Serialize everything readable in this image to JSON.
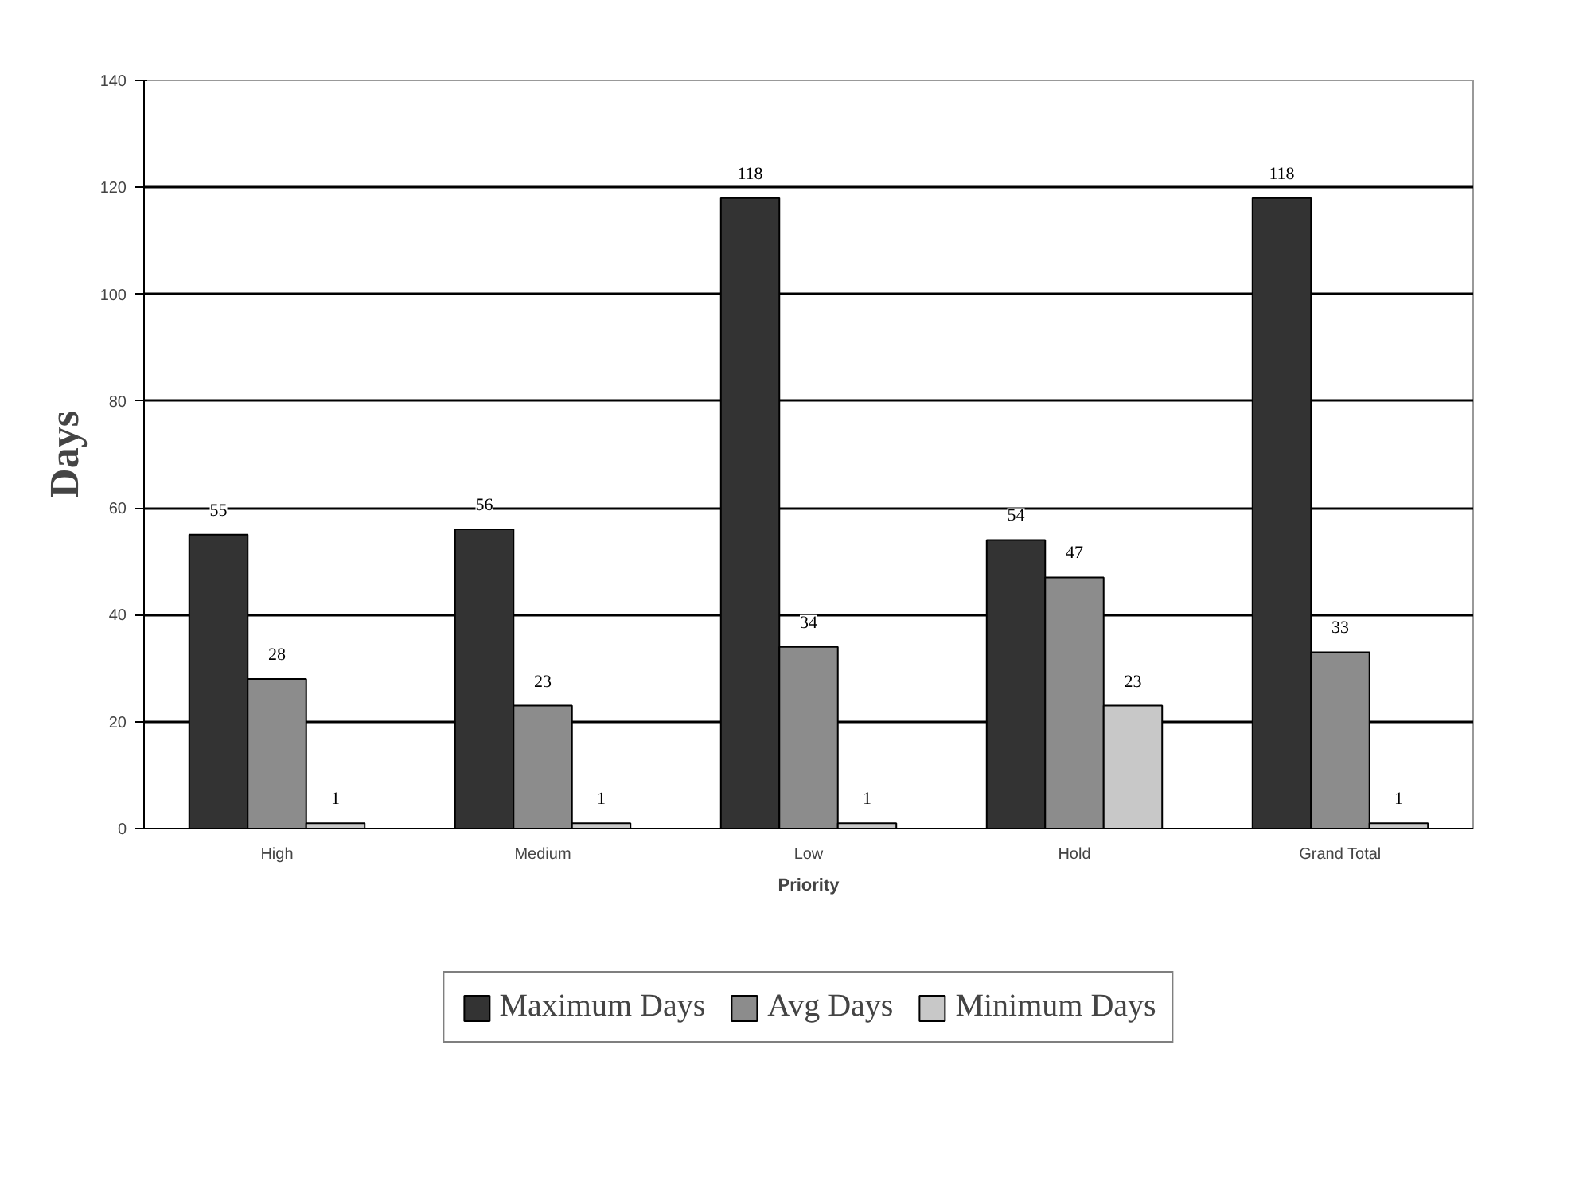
{
  "chart_data": {
    "type": "bar",
    "xlabel": "Priority",
    "ylabel": "Days",
    "categories": [
      "High",
      "Medium",
      "Low",
      "Hold",
      "Grand Total"
    ],
    "series": [
      {
        "name": "Maximum Days",
        "color": "#333333",
        "values": [
          55,
          56,
          118,
          54,
          118
        ]
      },
      {
        "name": "Avg Days",
        "color": "#8c8c8c",
        "values": [
          28,
          23,
          34,
          47,
          33
        ]
      },
      {
        "name": "Minimum Days",
        "color": "#c8c8c8",
        "values": [
          1,
          1,
          1,
          23,
          1
        ]
      }
    ],
    "ylim": [
      0,
      140
    ],
    "yticks": [
      0,
      20,
      40,
      60,
      80,
      100,
      120,
      140
    ],
    "grid": "y",
    "legend": "bottom",
    "data_labels": true
  }
}
